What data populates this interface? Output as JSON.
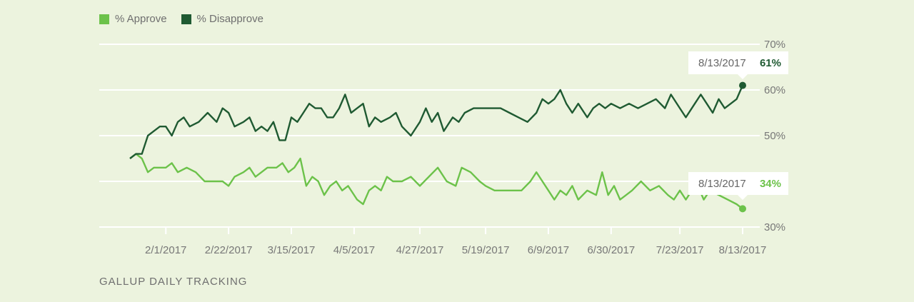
{
  "legend": {
    "approve_label": "% Approve",
    "disapprove_label": "% Disapprove"
  },
  "footer": "GALLUP DAILY TRACKING",
  "colors": {
    "approve": "#6cc24a",
    "disapprove": "#1f5a32",
    "grid": "#ffffff",
    "tick_text": "#777777"
  },
  "chart_data": {
    "type": "line",
    "x_start": "2017-01-20",
    "x_end": "2017-08-13",
    "x_ticks": [
      {
        "date": "2017-02-01",
        "label": "2/1/2017"
      },
      {
        "date": "2017-02-22",
        "label": "2/22/2017"
      },
      {
        "date": "2017-03-15",
        "label": "3/15/2017"
      },
      {
        "date": "2017-04-05",
        "label": "4/5/2017"
      },
      {
        "date": "2017-04-27",
        "label": "4/27/2017"
      },
      {
        "date": "2017-05-19",
        "label": "5/19/2017"
      },
      {
        "date": "2017-06-09",
        "label": "6/9/2017"
      },
      {
        "date": "2017-06-30",
        "label": "6/30/2017"
      },
      {
        "date": "2017-07-23",
        "label": "7/23/2017"
      },
      {
        "date": "2017-08-13",
        "label": "8/13/2017"
      }
    ],
    "y_ticks": [
      {
        "value": 30,
        "label": "30%"
      },
      {
        "value": 40,
        "label": "40%"
      },
      {
        "value": 50,
        "label": "50%"
      },
      {
        "value": 60,
        "label": "60%"
      },
      {
        "value": 70,
        "label": "70%"
      }
    ],
    "ylim": [
      30,
      70
    ],
    "grid": true,
    "legend_position": "top-left",
    "series": [
      {
        "name": "% Approve",
        "points": [
          [
            "2017-01-20",
            45
          ],
          [
            "2017-01-22",
            46
          ],
          [
            "2017-01-24",
            45
          ],
          [
            "2017-01-26",
            42
          ],
          [
            "2017-01-28",
            43
          ],
          [
            "2017-01-30",
            43
          ],
          [
            "2017-02-01",
            43
          ],
          [
            "2017-02-03",
            44
          ],
          [
            "2017-02-05",
            42
          ],
          [
            "2017-02-08",
            43
          ],
          [
            "2017-02-11",
            42
          ],
          [
            "2017-02-14",
            40
          ],
          [
            "2017-02-17",
            40
          ],
          [
            "2017-02-20",
            40
          ],
          [
            "2017-02-22",
            39
          ],
          [
            "2017-02-24",
            41
          ],
          [
            "2017-02-27",
            42
          ],
          [
            "2017-03-01",
            43
          ],
          [
            "2017-03-03",
            41
          ],
          [
            "2017-03-05",
            42
          ],
          [
            "2017-03-07",
            43
          ],
          [
            "2017-03-10",
            43
          ],
          [
            "2017-03-12",
            44
          ],
          [
            "2017-03-14",
            42
          ],
          [
            "2017-03-16",
            43
          ],
          [
            "2017-03-18",
            45
          ],
          [
            "2017-03-20",
            39
          ],
          [
            "2017-03-22",
            41
          ],
          [
            "2017-03-24",
            40
          ],
          [
            "2017-03-26",
            37
          ],
          [
            "2017-03-28",
            39
          ],
          [
            "2017-03-30",
            40
          ],
          [
            "2017-04-01",
            38
          ],
          [
            "2017-04-03",
            39
          ],
          [
            "2017-04-06",
            36
          ],
          [
            "2017-04-08",
            35
          ],
          [
            "2017-04-10",
            38
          ],
          [
            "2017-04-12",
            39
          ],
          [
            "2017-04-14",
            38
          ],
          [
            "2017-04-16",
            41
          ],
          [
            "2017-04-18",
            40
          ],
          [
            "2017-04-21",
            40
          ],
          [
            "2017-04-24",
            41
          ],
          [
            "2017-04-27",
            39
          ],
          [
            "2017-04-30",
            41
          ],
          [
            "2017-05-03",
            43
          ],
          [
            "2017-05-06",
            40
          ],
          [
            "2017-05-09",
            39
          ],
          [
            "2017-05-11",
            43
          ],
          [
            "2017-05-14",
            42
          ],
          [
            "2017-05-17",
            40
          ],
          [
            "2017-05-19",
            39
          ],
          [
            "2017-05-22",
            38
          ],
          [
            "2017-05-25",
            38
          ],
          [
            "2017-05-28",
            38
          ],
          [
            "2017-05-31",
            38
          ],
          [
            "2017-06-03",
            40
          ],
          [
            "2017-06-05",
            42
          ],
          [
            "2017-06-07",
            40
          ],
          [
            "2017-06-09",
            38
          ],
          [
            "2017-06-11",
            36
          ],
          [
            "2017-06-13",
            38
          ],
          [
            "2017-06-15",
            37
          ],
          [
            "2017-06-17",
            39
          ],
          [
            "2017-06-19",
            36
          ],
          [
            "2017-06-22",
            38
          ],
          [
            "2017-06-25",
            37
          ],
          [
            "2017-06-27",
            42
          ],
          [
            "2017-06-29",
            37
          ],
          [
            "2017-07-01",
            39
          ],
          [
            "2017-07-03",
            36
          ],
          [
            "2017-07-05",
            37
          ],
          [
            "2017-07-07",
            38
          ],
          [
            "2017-07-10",
            40
          ],
          [
            "2017-07-13",
            38
          ],
          [
            "2017-07-16",
            39
          ],
          [
            "2017-07-19",
            37
          ],
          [
            "2017-07-21",
            36
          ],
          [
            "2017-07-23",
            38
          ],
          [
            "2017-07-25",
            36
          ],
          [
            "2017-07-27",
            38
          ],
          [
            "2017-07-29",
            39
          ],
          [
            "2017-07-31",
            36
          ],
          [
            "2017-08-02",
            38
          ],
          [
            "2017-08-05",
            37
          ],
          [
            "2017-08-08",
            36
          ],
          [
            "2017-08-11",
            35
          ],
          [
            "2017-08-13",
            34
          ]
        ],
        "last_point": {
          "date_label": "8/13/2017",
          "value_label": "34%",
          "value": 34
        }
      },
      {
        "name": "% Disapprove",
        "points": [
          [
            "2017-01-20",
            45
          ],
          [
            "2017-01-22",
            46
          ],
          [
            "2017-01-24",
            46
          ],
          [
            "2017-01-26",
            50
          ],
          [
            "2017-01-28",
            51
          ],
          [
            "2017-01-30",
            52
          ],
          [
            "2017-02-01",
            52
          ],
          [
            "2017-02-03",
            50
          ],
          [
            "2017-02-05",
            53
          ],
          [
            "2017-02-07",
            54
          ],
          [
            "2017-02-09",
            52
          ],
          [
            "2017-02-12",
            53
          ],
          [
            "2017-02-15",
            55
          ],
          [
            "2017-02-18",
            53
          ],
          [
            "2017-02-20",
            56
          ],
          [
            "2017-02-22",
            55
          ],
          [
            "2017-02-24",
            52
          ],
          [
            "2017-02-27",
            53
          ],
          [
            "2017-03-01",
            54
          ],
          [
            "2017-03-03",
            51
          ],
          [
            "2017-03-05",
            52
          ],
          [
            "2017-03-07",
            51
          ],
          [
            "2017-03-09",
            53
          ],
          [
            "2017-03-11",
            49
          ],
          [
            "2017-03-13",
            49
          ],
          [
            "2017-03-15",
            54
          ],
          [
            "2017-03-17",
            53
          ],
          [
            "2017-03-19",
            55
          ],
          [
            "2017-03-21",
            57
          ],
          [
            "2017-03-23",
            56
          ],
          [
            "2017-03-25",
            56
          ],
          [
            "2017-03-27",
            54
          ],
          [
            "2017-03-29",
            54
          ],
          [
            "2017-03-31",
            56
          ],
          [
            "2017-04-02",
            59
          ],
          [
            "2017-04-04",
            55
          ],
          [
            "2017-04-06",
            56
          ],
          [
            "2017-04-08",
            57
          ],
          [
            "2017-04-10",
            52
          ],
          [
            "2017-04-12",
            54
          ],
          [
            "2017-04-14",
            53
          ],
          [
            "2017-04-17",
            54
          ],
          [
            "2017-04-19",
            55
          ],
          [
            "2017-04-21",
            52
          ],
          [
            "2017-04-24",
            50
          ],
          [
            "2017-04-27",
            53
          ],
          [
            "2017-04-29",
            56
          ],
          [
            "2017-05-01",
            53
          ],
          [
            "2017-05-03",
            55
          ],
          [
            "2017-05-05",
            51
          ],
          [
            "2017-05-08",
            54
          ],
          [
            "2017-05-10",
            53
          ],
          [
            "2017-05-12",
            55
          ],
          [
            "2017-05-15",
            56
          ],
          [
            "2017-05-18",
            56
          ],
          [
            "2017-05-21",
            56
          ],
          [
            "2017-05-24",
            56
          ],
          [
            "2017-05-27",
            55
          ],
          [
            "2017-05-30",
            54
          ],
          [
            "2017-06-02",
            53
          ],
          [
            "2017-06-05",
            55
          ],
          [
            "2017-06-07",
            58
          ],
          [
            "2017-06-09",
            57
          ],
          [
            "2017-06-11",
            58
          ],
          [
            "2017-06-13",
            60
          ],
          [
            "2017-06-15",
            57
          ],
          [
            "2017-06-17",
            55
          ],
          [
            "2017-06-19",
            57
          ],
          [
            "2017-06-22",
            54
          ],
          [
            "2017-06-24",
            56
          ],
          [
            "2017-06-26",
            57
          ],
          [
            "2017-06-28",
            56
          ],
          [
            "2017-06-30",
            57
          ],
          [
            "2017-07-03",
            56
          ],
          [
            "2017-07-06",
            57
          ],
          [
            "2017-07-09",
            56
          ],
          [
            "2017-07-12",
            57
          ],
          [
            "2017-07-15",
            58
          ],
          [
            "2017-07-18",
            56
          ],
          [
            "2017-07-20",
            59
          ],
          [
            "2017-07-23",
            56
          ],
          [
            "2017-07-25",
            54
          ],
          [
            "2017-07-28",
            57
          ],
          [
            "2017-07-30",
            59
          ],
          [
            "2017-08-01",
            57
          ],
          [
            "2017-08-03",
            55
          ],
          [
            "2017-08-05",
            58
          ],
          [
            "2017-08-07",
            56
          ],
          [
            "2017-08-09",
            57
          ],
          [
            "2017-08-11",
            58
          ],
          [
            "2017-08-13",
            61
          ]
        ],
        "last_point": {
          "date_label": "8/13/2017",
          "value_label": "61%",
          "value": 61
        }
      }
    ]
  }
}
